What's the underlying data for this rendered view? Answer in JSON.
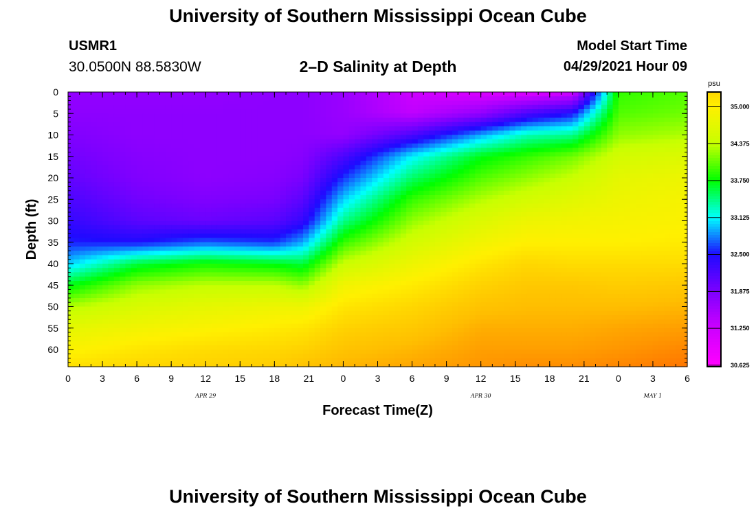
{
  "header": {
    "title": "University of Southern Mississippi Ocean Cube",
    "station": "USMR1",
    "coords": "30.0500N  88.5830W",
    "subtitle": "2–D Salinity at Depth",
    "model_start_label": "Model Start Time",
    "model_start_value": "04/29/2021 Hour 09"
  },
  "footer": {
    "title": "University of Southern Mississippi Ocean Cube"
  },
  "chart_data": {
    "type": "heatmap",
    "title": "2–D Salinity at Depth",
    "xlabel": "Forecast Time(Z)",
    "ylabel": "Depth (ft)",
    "x_range_hours": [
      0,
      54
    ],
    "x_ticks": [
      {
        "h": 0,
        "label": "0"
      },
      {
        "h": 3,
        "label": "3"
      },
      {
        "h": 6,
        "label": "6"
      },
      {
        "h": 9,
        "label": "9"
      },
      {
        "h": 12,
        "label": "12"
      },
      {
        "h": 15,
        "label": "15"
      },
      {
        "h": 18,
        "label": "18"
      },
      {
        "h": 21,
        "label": "21"
      },
      {
        "h": 24,
        "label": "0"
      },
      {
        "h": 27,
        "label": "3"
      },
      {
        "h": 30,
        "label": "6"
      },
      {
        "h": 33,
        "label": "9"
      },
      {
        "h": 36,
        "label": "12"
      },
      {
        "h": 39,
        "label": "15"
      },
      {
        "h": 42,
        "label": "18"
      },
      {
        "h": 45,
        "label": "21"
      },
      {
        "h": 48,
        "label": "0"
      },
      {
        "h": 51,
        "label": "3"
      },
      {
        "h": 54,
        "label": "6"
      }
    ],
    "date_labels": [
      {
        "h": 12,
        "label": "APR 29"
      },
      {
        "h": 36,
        "label": "APR 30"
      },
      {
        "h": 51,
        "label": "MAY 1"
      }
    ],
    "y_range_ft": [
      0,
      64
    ],
    "y_ticks": [
      0,
      5,
      10,
      15,
      20,
      25,
      30,
      35,
      40,
      45,
      50,
      55,
      60
    ],
    "colorbar": {
      "unit": "psu",
      "ticks": [
        "35.000",
        "34.375",
        "33.750",
        "33.125",
        "32.500",
        "31.875",
        "31.250",
        "30.625"
      ],
      "min": 30.625,
      "max": 35.0
    },
    "salinity_psu": {
      "times": [
        0,
        6,
        12,
        18,
        20.5,
        24,
        30,
        36,
        40,
        44,
        48,
        54
      ],
      "depths": [
        0,
        5,
        10,
        15,
        20,
        25,
        30,
        35,
        40,
        45,
        50,
        55,
        60,
        64
      ],
      "values": [
        [
          31.7,
          31.7,
          31.7,
          31.75,
          31.75,
          31.65,
          31.25,
          31.1,
          31.05,
          31.2,
          33.9,
          34.0
        ],
        [
          31.75,
          31.75,
          31.75,
          31.75,
          31.75,
          31.65,
          31.35,
          31.7,
          32.2,
          32.5,
          34.0,
          34.1
        ],
        [
          31.85,
          31.75,
          31.75,
          31.75,
          31.75,
          31.7,
          32.2,
          32.9,
          33.3,
          33.4,
          34.2,
          34.3
        ],
        [
          31.95,
          31.8,
          31.75,
          31.75,
          31.8,
          32.2,
          33.1,
          33.7,
          33.9,
          34.1,
          34.5,
          34.6
        ],
        [
          32.05,
          31.85,
          31.75,
          31.8,
          31.9,
          32.6,
          33.5,
          34.0,
          34.2,
          34.4,
          34.7,
          34.8
        ],
        [
          32.2,
          31.95,
          31.85,
          31.9,
          32.1,
          33.0,
          33.9,
          34.3,
          34.5,
          34.65,
          34.8,
          34.9
        ],
        [
          32.35,
          32.1,
          32.0,
          32.1,
          32.35,
          33.4,
          34.2,
          34.6,
          34.8,
          34.85,
          34.9,
          34.95
        ],
        [
          32.55,
          32.5,
          32.7,
          32.6,
          32.9,
          33.9,
          34.5,
          34.85,
          35.0,
          35.0,
          35.0,
          35.05
        ],
        [
          33.0,
          33.6,
          33.8,
          33.7,
          33.6,
          34.4,
          34.8,
          35.1,
          35.25,
          35.2,
          35.2,
          35.2
        ],
        [
          33.7,
          34.2,
          34.35,
          34.35,
          34.2,
          34.85,
          35.05,
          35.3,
          35.4,
          35.4,
          35.35,
          35.4
        ],
        [
          34.3,
          34.55,
          34.7,
          34.8,
          34.8,
          35.1,
          35.25,
          35.45,
          35.5,
          35.5,
          35.5,
          35.55
        ],
        [
          34.7,
          34.85,
          34.95,
          35.05,
          35.1,
          35.3,
          35.4,
          35.6,
          35.6,
          35.6,
          35.65,
          35.7
        ],
        [
          34.95,
          35.1,
          35.2,
          35.25,
          35.3,
          35.45,
          35.55,
          35.7,
          35.7,
          35.7,
          35.75,
          35.85
        ],
        [
          35.15,
          35.25,
          35.3,
          35.35,
          35.45,
          35.55,
          35.65,
          35.75,
          35.8,
          35.8,
          35.85,
          35.95
        ]
      ]
    }
  }
}
